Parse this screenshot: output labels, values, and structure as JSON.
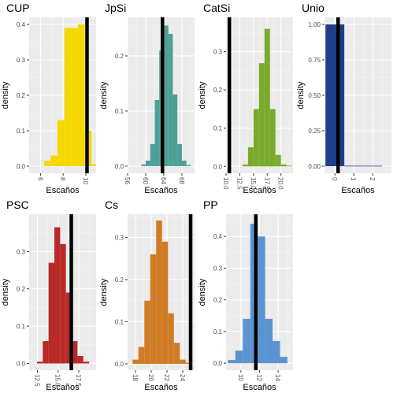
{
  "chart_data": [
    {
      "type": "bar",
      "title": "CUP",
      "xlabel": "Escaños",
      "ylabel": "density",
      "color": "#F5D800",
      "xlim": [
        5.0,
        10.9
      ],
      "ylim": [
        -0.02,
        0.42
      ],
      "xticks": [
        6,
        8,
        10
      ],
      "yticks": [
        0.0,
        0.1,
        0.2,
        0.3,
        0.4
      ],
      "bin_width": 0.6,
      "bins": [
        {
          "x": 6.6,
          "y": 0.015
        },
        {
          "x": 7.2,
          "y": 0.03
        },
        {
          "x": 7.8,
          "y": 0.13
        },
        {
          "x": 8.4,
          "y": 0.39
        },
        {
          "x": 9.0,
          "y": 0.39
        },
        {
          "x": 9.6,
          "y": 0.4
        },
        {
          "x": 10.2,
          "y": 0.1
        },
        {
          "x": 10.6,
          "y": 0.005
        }
      ],
      "vline": 10.1
    },
    {
      "type": "bar",
      "title": "JpSi",
      "xlabel": "Escaños",
      "ylabel": "density",
      "color": "#4E9F98",
      "xlim": [
        56,
        70.8
      ],
      "ylim": [
        -0.013,
        0.27
      ],
      "xticks": [
        56,
        60,
        64,
        68
      ],
      "yticks": [
        0.0,
        0.1,
        0.2
      ],
      "bin_width": 1,
      "bins": [
        {
          "x": 59.5,
          "y": 0.003
        },
        {
          "x": 60.5,
          "y": 0.01
        },
        {
          "x": 61.5,
          "y": 0.04
        },
        {
          "x": 62.5,
          "y": 0.12
        },
        {
          "x": 63.5,
          "y": 0.21
        },
        {
          "x": 64.5,
          "y": 0.255
        },
        {
          "x": 65.5,
          "y": 0.24
        },
        {
          "x": 66.5,
          "y": 0.13
        },
        {
          "x": 67.5,
          "y": 0.04
        },
        {
          "x": 68.5,
          "y": 0.01
        },
        {
          "x": 69.5,
          "y": 0.002
        }
      ],
      "vline": 63.7
    },
    {
      "type": "bar",
      "title": "CatSi",
      "xlabel": "Escaños",
      "ylabel": "density",
      "color": "#7BAA2A",
      "xlim": [
        10.0,
        22.2
      ],
      "ylim": [
        -0.018,
        0.39
      ],
      "xticks": [
        10.0,
        12.5,
        15.0,
        17.5,
        20.0
      ],
      "yticks": [
        0.0,
        0.1,
        0.2,
        0.3
      ],
      "bin_width": 1,
      "bins": [
        {
          "x": 13.5,
          "y": 0.005
        },
        {
          "x": 14.5,
          "y": 0.05
        },
        {
          "x": 15.5,
          "y": 0.15
        },
        {
          "x": 16.5,
          "y": 0.27
        },
        {
          "x": 17.5,
          "y": 0.36
        },
        {
          "x": 18.5,
          "y": 0.15
        },
        {
          "x": 19.5,
          "y": 0.03
        },
        {
          "x": 20.5,
          "y": 0.005
        },
        {
          "x": 21.5,
          "y": 0.002
        }
      ],
      "vline": 10.6
    },
    {
      "type": "bar",
      "title": "Unio",
      "xlabel": "Escaños",
      "ylabel": "density",
      "color": "#1F3F8A",
      "xlim": [
        -0.55,
        3.0
      ],
      "ylim": [
        -0.05,
        1.05
      ],
      "xticks": [
        0,
        1,
        2
      ],
      "yticks": [
        0.0,
        0.25,
        0.5,
        0.75,
        1.0
      ],
      "bin_width": 1,
      "bins": [
        {
          "x": 0,
          "y": 1.0
        },
        {
          "x": 1,
          "y": 0.003
        },
        {
          "x": 2,
          "y": 0.003
        }
      ],
      "vline": 0.17
    },
    {
      "type": "bar",
      "title": "PSC",
      "xlabel": "Escaños",
      "ylabel": "density",
      "color": "#B82A26",
      "xlim": [
        11.5,
        19.6
      ],
      "ylim": [
        -0.018,
        0.4
      ],
      "xticks": [
        12.5,
        15.0,
        17.5
      ],
      "yticks": [
        0.0,
        0.1,
        0.2,
        0.3
      ],
      "bin_width": 0.7,
      "bins": [
        {
          "x": 12.8,
          "y": 0.005
        },
        {
          "x": 13.5,
          "y": 0.06
        },
        {
          "x": 14.2,
          "y": 0.27
        },
        {
          "x": 14.9,
          "y": 0.365
        },
        {
          "x": 15.6,
          "y": 0.32
        },
        {
          "x": 16.3,
          "y": 0.19
        },
        {
          "x": 17.0,
          "y": 0.06
        },
        {
          "x": 17.7,
          "y": 0.02
        },
        {
          "x": 18.4,
          "y": 0.005
        }
      ],
      "vline": 16.6
    },
    {
      "type": "bar",
      "title": "Cs",
      "xlabel": "Escaños",
      "ylabel": "density",
      "color": "#D07C24",
      "xlim": [
        17.0,
        25.5
      ],
      "ylim": [
        -0.015,
        0.355
      ],
      "xticks": [
        18,
        20,
        22,
        24
      ],
      "yticks": [
        0.0,
        0.1,
        0.2,
        0.3
      ],
      "bin_width": 0.75,
      "bins": [
        {
          "x": 18.0,
          "y": 0.01
        },
        {
          "x": 18.75,
          "y": 0.04
        },
        {
          "x": 19.5,
          "y": 0.15
        },
        {
          "x": 20.25,
          "y": 0.26
        },
        {
          "x": 21.0,
          "y": 0.34
        },
        {
          "x": 21.75,
          "y": 0.29
        },
        {
          "x": 22.5,
          "y": 0.12
        },
        {
          "x": 23.25,
          "y": 0.05
        },
        {
          "x": 24.0,
          "y": 0.01
        },
        {
          "x": 24.75,
          "y": 0.003
        }
      ],
      "vline": 25.0
    },
    {
      "type": "bar",
      "title": "PP",
      "xlabel": "Escaños",
      "ylabel": "density",
      "color": "#5B94D1",
      "xlim": [
        8.4,
        15.6
      ],
      "ylim": [
        -0.022,
        0.47
      ],
      "xticks": [
        10,
        12,
        14
      ],
      "yticks": [
        0.0,
        0.1,
        0.2,
        0.3,
        0.4
      ],
      "bin_width": 0.8,
      "bins": [
        {
          "x": 9.0,
          "y": 0.01
        },
        {
          "x": 9.8,
          "y": 0.04
        },
        {
          "x": 10.6,
          "y": 0.14
        },
        {
          "x": 11.4,
          "y": 0.44
        },
        {
          "x": 12.2,
          "y": 0.4
        },
        {
          "x": 13.0,
          "y": 0.14
        },
        {
          "x": 13.8,
          "y": 0.07
        },
        {
          "x": 14.6,
          "y": 0.02
        }
      ],
      "vline": 11.6
    }
  ]
}
